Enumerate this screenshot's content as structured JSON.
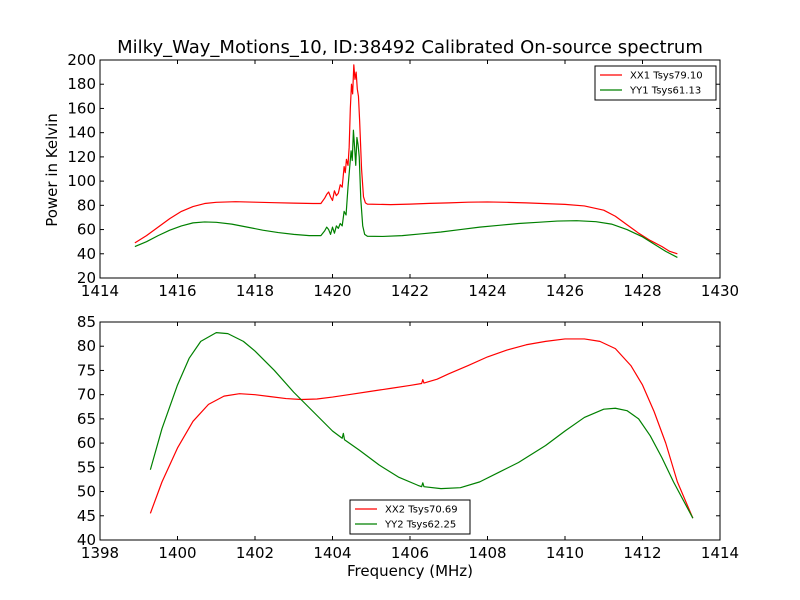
{
  "figure": {
    "title": "Milky_Way_Motions_10, ID:38492 Calibrated On-source spectrum",
    "xlabel": "Frequency (MHz)",
    "ylabel_top": "Power in Kelvin"
  },
  "chart_data": [
    {
      "type": "line",
      "xlim": [
        1414,
        1430
      ],
      "ylim": [
        20,
        200
      ],
      "x_ticks": [
        1414,
        1416,
        1418,
        1420,
        1422,
        1424,
        1426,
        1428,
        1430
      ],
      "y_ticks": [
        20,
        40,
        60,
        80,
        100,
        120,
        140,
        160,
        180,
        200
      ],
      "grid": false,
      "legend_position": "top-right",
      "series": [
        {
          "name": "XX1 Tsys79.10",
          "color": "#ff0000",
          "points": [
            [
              1414.9,
              49
            ],
            [
              1415.2,
              55
            ],
            [
              1415.5,
              62
            ],
            [
              1415.8,
              69
            ],
            [
              1416.1,
              75
            ],
            [
              1416.4,
              79
            ],
            [
              1416.7,
              81.5
            ],
            [
              1417.0,
              82.5
            ],
            [
              1417.5,
              83
            ],
            [
              1418.0,
              82.6
            ],
            [
              1418.5,
              82.2
            ],
            [
              1419.0,
              81.8
            ],
            [
              1419.5,
              81.5
            ],
            [
              1419.7,
              81.5
            ],
            [
              1419.8,
              86
            ],
            [
              1419.85,
              89
            ],
            [
              1419.9,
              91
            ],
            [
              1419.95,
              87
            ],
            [
              1420.0,
              84
            ],
            [
              1420.05,
              92
            ],
            [
              1420.1,
              88
            ],
            [
              1420.15,
              90
            ],
            [
              1420.2,
              97
            ],
            [
              1420.25,
              95
            ],
            [
              1420.3,
              112
            ],
            [
              1420.33,
              107
            ],
            [
              1420.36,
              118
            ],
            [
              1420.4,
              113
            ],
            [
              1420.43,
              128
            ],
            [
              1420.46,
              160
            ],
            [
              1420.49,
              180
            ],
            [
              1420.52,
              172
            ],
            [
              1420.55,
              196
            ],
            [
              1420.58,
              184
            ],
            [
              1420.61,
              190
            ],
            [
              1420.64,
              176
            ],
            [
              1420.67,
              170
            ],
            [
              1420.7,
              150
            ],
            [
              1420.75,
              110
            ],
            [
              1420.8,
              87
            ],
            [
              1420.85,
              82
            ],
            [
              1420.9,
              81
            ],
            [
              1421.5,
              80.6
            ],
            [
              1422.0,
              81
            ],
            [
              1422.5,
              81.6
            ],
            [
              1423.0,
              82
            ],
            [
              1423.5,
              82.6
            ],
            [
              1424.0,
              82.8
            ],
            [
              1424.5,
              82.5
            ],
            [
              1425.0,
              82
            ],
            [
              1425.5,
              81.4
            ],
            [
              1426.0,
              80.8
            ],
            [
              1426.5,
              79.5
            ],
            [
              1427.0,
              76
            ],
            [
              1427.3,
              71
            ],
            [
              1427.6,
              64
            ],
            [
              1427.9,
              57
            ],
            [
              1428.2,
              51
            ],
            [
              1428.5,
              46
            ],
            [
              1428.7,
              42
            ],
            [
              1428.9,
              40
            ]
          ]
        },
        {
          "name": "YY1 Tsys61.13",
          "color": "#008000",
          "points": [
            [
              1414.9,
              46
            ],
            [
              1415.2,
              50
            ],
            [
              1415.5,
              55
            ],
            [
              1415.8,
              59.5
            ],
            [
              1416.1,
              63
            ],
            [
              1416.4,
              65.5
            ],
            [
              1416.7,
              66.3
            ],
            [
              1417.0,
              66
            ],
            [
              1417.4,
              64.5
            ],
            [
              1417.8,
              62
            ],
            [
              1418.2,
              59.5
            ],
            [
              1418.6,
              57.5
            ],
            [
              1419.0,
              56
            ],
            [
              1419.4,
              55
            ],
            [
              1419.7,
              55
            ],
            [
              1419.8,
              59
            ],
            [
              1419.85,
              62
            ],
            [
              1419.9,
              60
            ],
            [
              1419.95,
              56
            ],
            [
              1420.0,
              62
            ],
            [
              1420.05,
              57
            ],
            [
              1420.1,
              63
            ],
            [
              1420.15,
              61
            ],
            [
              1420.2,
              65
            ],
            [
              1420.25,
              63
            ],
            [
              1420.3,
              75
            ],
            [
              1420.35,
              72
            ],
            [
              1420.4,
              95
            ],
            [
              1420.44,
              110
            ],
            [
              1420.48,
              125
            ],
            [
              1420.51,
              117
            ],
            [
              1420.54,
              142
            ],
            [
              1420.57,
              128
            ],
            [
              1420.6,
              113
            ],
            [
              1420.63,
              136
            ],
            [
              1420.66,
              130
            ],
            [
              1420.69,
              120
            ],
            [
              1420.73,
              85
            ],
            [
              1420.78,
              63
            ],
            [
              1420.83,
              56
            ],
            [
              1420.9,
              54.5
            ],
            [
              1421.3,
              54.3
            ],
            [
              1421.8,
              55
            ],
            [
              1422.3,
              56.5
            ],
            [
              1422.8,
              58
            ],
            [
              1423.3,
              60
            ],
            [
              1423.8,
              62
            ],
            [
              1424.3,
              63.5
            ],
            [
              1424.8,
              65
            ],
            [
              1425.3,
              66
            ],
            [
              1425.8,
              67
            ],
            [
              1426.3,
              67.3
            ],
            [
              1426.8,
              66.5
            ],
            [
              1427.2,
              64.5
            ],
            [
              1427.6,
              60
            ],
            [
              1428.0,
              54
            ],
            [
              1428.3,
              48
            ],
            [
              1428.6,
              42
            ],
            [
              1428.9,
              37
            ]
          ]
        }
      ]
    },
    {
      "type": "line",
      "xlim": [
        1398,
        1414
      ],
      "ylim": [
        40,
        85
      ],
      "x_ticks": [
        1398,
        1400,
        1402,
        1404,
        1406,
        1408,
        1410,
        1412,
        1414
      ],
      "y_ticks": [
        40,
        45,
        50,
        55,
        60,
        65,
        70,
        75,
        80,
        85
      ],
      "grid": false,
      "legend_position": "bottom-center",
      "series": [
        {
          "name": "XX2 Tsys70.69",
          "color": "#ff0000",
          "points": [
            [
              1399.3,
              45.5
            ],
            [
              1399.6,
              52
            ],
            [
              1400.0,
              59
            ],
            [
              1400.4,
              64.5
            ],
            [
              1400.8,
              68
            ],
            [
              1401.2,
              69.7
            ],
            [
              1401.6,
              70.2
            ],
            [
              1402.0,
              70
            ],
            [
              1402.4,
              69.6
            ],
            [
              1402.8,
              69.2
            ],
            [
              1403.2,
              69
            ],
            [
              1403.6,
              69.1
            ],
            [
              1404.0,
              69.5
            ],
            [
              1404.5,
              70.1
            ],
            [
              1405.0,
              70.7
            ],
            [
              1405.5,
              71.3
            ],
            [
              1406.0,
              71.9
            ],
            [
              1406.3,
              72.3
            ],
            [
              1406.33,
              73.1
            ],
            [
              1406.36,
              72.4
            ],
            [
              1406.7,
              73.2
            ],
            [
              1407.0,
              74.3
            ],
            [
              1407.5,
              76
            ],
            [
              1408.0,
              77.8
            ],
            [
              1408.5,
              79.2
            ],
            [
              1409.0,
              80.3
            ],
            [
              1409.5,
              81
            ],
            [
              1410.0,
              81.5
            ],
            [
              1410.5,
              81.5
            ],
            [
              1410.9,
              81
            ],
            [
              1411.3,
              79.5
            ],
            [
              1411.7,
              76
            ],
            [
              1412.0,
              72
            ],
            [
              1412.3,
              66.5
            ],
            [
              1412.6,
              60
            ],
            [
              1412.9,
              52
            ],
            [
              1413.3,
              44.5
            ]
          ]
        },
        {
          "name": "YY2 Tsys62.25",
          "color": "#008000",
          "points": [
            [
              1399.3,
              54.5
            ],
            [
              1399.6,
              63
            ],
            [
              1400.0,
              72
            ],
            [
              1400.3,
              77.5
            ],
            [
              1400.6,
              81
            ],
            [
              1401.0,
              82.8
            ],
            [
              1401.3,
              82.6
            ],
            [
              1401.7,
              81
            ],
            [
              1402.0,
              79
            ],
            [
              1402.5,
              75
            ],
            [
              1403.0,
              70.5
            ],
            [
              1403.5,
              66.5
            ],
            [
              1404.0,
              62.5
            ],
            [
              1404.25,
              61
            ],
            [
              1404.28,
              62
            ],
            [
              1404.31,
              60.7
            ],
            [
              1404.7,
              58.5
            ],
            [
              1405.2,
              55.5
            ],
            [
              1405.7,
              53
            ],
            [
              1406.2,
              51.3
            ],
            [
              1406.3,
              51
            ],
            [
              1406.33,
              51.8
            ],
            [
              1406.36,
              51
            ],
            [
              1406.8,
              50.6
            ],
            [
              1407.3,
              50.8
            ],
            [
              1407.8,
              52
            ],
            [
              1408.3,
              54
            ],
            [
              1408.8,
              56
            ],
            [
              1409.0,
              57
            ],
            [
              1409.5,
              59.5
            ],
            [
              1410.0,
              62.5
            ],
            [
              1410.5,
              65.3
            ],
            [
              1411.0,
              67
            ],
            [
              1411.3,
              67.2
            ],
            [
              1411.6,
              66.7
            ],
            [
              1411.9,
              65
            ],
            [
              1412.2,
              61.5
            ],
            [
              1412.5,
              57
            ],
            [
              1412.8,
              52
            ],
            [
              1413.3,
              44.5
            ]
          ]
        }
      ]
    }
  ]
}
